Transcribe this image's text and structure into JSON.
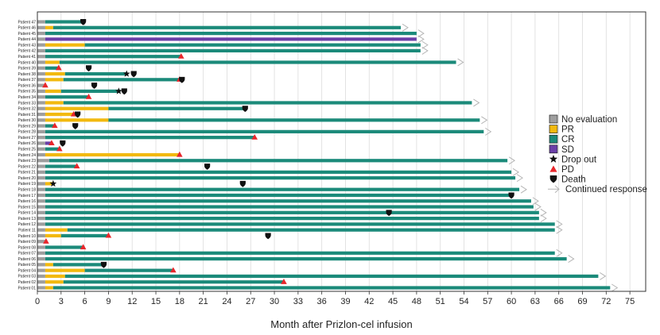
{
  "chart_data": {
    "type": "swimmer",
    "xlabel": "Month after Prizlon-cel infusion",
    "xlim": [
      0,
      77
    ],
    "x_ticks": [
      0,
      3,
      6,
      9,
      12,
      15,
      18,
      21,
      24,
      27,
      30,
      33,
      36,
      39,
      42,
      45,
      48,
      51,
      54,
      57,
      60,
      63,
      66,
      69,
      72,
      75
    ],
    "grid": true,
    "legend_position": "right",
    "legend": [
      {
        "key": "NE",
        "label": "No evaluation",
        "color": "#9e9e9e",
        "symbol": "square"
      },
      {
        "key": "PR",
        "label": "PR",
        "color": "#f2b90f",
        "symbol": "square"
      },
      {
        "key": "CR",
        "label": "CR",
        "color": "#1b8a7a",
        "symbol": "square"
      },
      {
        "key": "SD",
        "label": "SD",
        "color": "#6a3fa8",
        "symbol": "square"
      },
      {
        "key": "drop",
        "label": "Drop out",
        "symbol": "star"
      },
      {
        "key": "pd",
        "label": "PD",
        "symbol": "triangle"
      },
      {
        "key": "death",
        "label": "Death",
        "symbol": "shield"
      },
      {
        "key": "cont",
        "label": "Continued response",
        "symbol": "arrow"
      }
    ],
    "patients": [
      {
        "label": "Patient 01",
        "segments": [
          [
            "NE",
            0,
            1
          ],
          [
            "PR",
            1,
            2
          ],
          [
            "CR",
            2,
            72.5
          ]
        ],
        "markers": [],
        "continued": true
      },
      {
        "label": "Patient 02",
        "segments": [
          [
            "NE",
            0,
            1
          ],
          [
            "PR",
            1,
            3.3
          ],
          [
            "CR",
            3.3,
            31.2
          ]
        ],
        "markers": [
          {
            "type": "pd",
            "month": 31.2
          }
        ],
        "continued": false
      },
      {
        "label": "Patient 03",
        "segments": [
          [
            "NE",
            0,
            1
          ],
          [
            "PR",
            1,
            3.5
          ],
          [
            "CR",
            3.5,
            71
          ]
        ],
        "markers": [],
        "continued": true
      },
      {
        "label": "Patient 04",
        "segments": [
          [
            "NE",
            0,
            1
          ],
          [
            "PR",
            1,
            6
          ],
          [
            "CR",
            6,
            17.2
          ]
        ],
        "markers": [
          {
            "type": "pd",
            "month": 17.2
          }
        ],
        "continued": false
      },
      {
        "label": "Patient 05",
        "segments": [
          [
            "NE",
            0,
            1
          ],
          [
            "PR",
            1,
            2
          ],
          [
            "CR",
            2,
            8.4
          ]
        ],
        "markers": [
          {
            "type": "death",
            "month": 8.4
          }
        ],
        "continued": false
      },
      {
        "label": "Patient 06",
        "segments": [
          [
            "NE",
            0,
            1
          ],
          [
            "CR",
            1,
            67
          ]
        ],
        "markers": [],
        "continued": true
      },
      {
        "label": "Patient 07",
        "segments": [
          [
            "NE",
            0,
            1
          ],
          [
            "CR",
            1,
            65.5
          ]
        ],
        "markers": [],
        "continued": true
      },
      {
        "label": "Patient 08",
        "segments": [
          [
            "NE",
            0,
            1
          ],
          [
            "CR",
            1,
            5.8
          ]
        ],
        "markers": [
          {
            "type": "pd",
            "month": 5.8
          }
        ],
        "continued": false
      },
      {
        "label": "Patient 09",
        "segments": [
          [
            "NE",
            0,
            1
          ]
        ],
        "markers": [
          {
            "type": "pd",
            "month": 1.1
          }
        ],
        "continued": false
      },
      {
        "label": "Patient 10",
        "segments": [
          [
            "NE",
            0,
            1
          ],
          [
            "PR",
            1,
            3
          ],
          [
            "CR",
            3,
            9
          ]
        ],
        "markers": [
          {
            "type": "pd",
            "month": 9
          },
          {
            "type": "death",
            "month": 29.2
          }
        ],
        "continued": false
      },
      {
        "label": "Patient 11",
        "segments": [
          [
            "NE",
            0,
            1
          ],
          [
            "PR",
            1,
            3.8
          ],
          [
            "CR",
            3.8,
            65.5
          ]
        ],
        "markers": [],
        "continued": true
      },
      {
        "label": "Patient 12",
        "segments": [
          [
            "NE",
            0,
            1
          ],
          [
            "CR",
            1,
            65.5
          ]
        ],
        "markers": [],
        "continued": true
      },
      {
        "label": "Patient 13",
        "segments": [
          [
            "NE",
            0,
            1
          ],
          [
            "CR",
            1,
            63.5
          ]
        ],
        "markers": [],
        "continued": true
      },
      {
        "label": "Patient 14",
        "segments": [
          [
            "NE",
            0,
            1
          ],
          [
            "CR",
            1,
            63.5
          ]
        ],
        "markers": [
          {
            "type": "death",
            "month": 44.5
          }
        ],
        "continued": true
      },
      {
        "label": "Patient 15",
        "segments": [
          [
            "NE",
            0,
            1
          ],
          [
            "CR",
            1,
            62.8
          ]
        ],
        "markers": [],
        "continued": true
      },
      {
        "label": "Patient 16",
        "segments": [
          [
            "NE",
            0,
            1
          ],
          [
            "CR",
            1,
            62.5
          ]
        ],
        "markers": [],
        "continued": true
      },
      {
        "label": "Patient 17",
        "segments": [
          [
            "NE",
            0,
            1
          ],
          [
            "CR",
            1,
            60
          ]
        ],
        "markers": [
          {
            "type": "death",
            "month": 60
          }
        ],
        "continued": false
      },
      {
        "label": "Patient 18",
        "segments": [
          [
            "NE",
            0,
            1
          ],
          [
            "CR",
            1,
            61
          ]
        ],
        "markers": [],
        "continued": true
      },
      {
        "label": "Patient 19",
        "segments": [
          [
            "NE",
            0,
            1
          ],
          [
            "PR",
            1,
            2
          ]
        ],
        "markers": [
          {
            "type": "drop",
            "month": 2
          },
          {
            "type": "death",
            "month": 26
          }
        ],
        "continued": false
      },
      {
        "label": "Patient 20",
        "segments": [
          [
            "NE",
            0,
            1
          ],
          [
            "CR",
            1,
            60.5
          ]
        ],
        "markers": [],
        "continued": true
      },
      {
        "label": "Patient 21",
        "segments": [
          [
            "NE",
            0,
            1
          ],
          [
            "CR",
            1,
            60
          ]
        ],
        "markers": [],
        "continued": true
      },
      {
        "label": "Patient 22",
        "segments": [
          [
            "NE",
            0,
            1
          ],
          [
            "CR",
            1,
            5
          ]
        ],
        "markers": [
          {
            "type": "pd",
            "month": 5
          },
          {
            "type": "death",
            "month": 21.5
          }
        ],
        "continued": false
      },
      {
        "label": "Patient 23",
        "segments": [
          [
            "NE",
            0,
            1.5
          ],
          [
            "CR",
            1.5,
            59.5
          ]
        ],
        "markers": [],
        "continued": true
      },
      {
        "label": "Patient 24",
        "segments": [
          [
            "NE",
            0,
            1
          ],
          [
            "PR",
            1,
            18
          ]
        ],
        "markers": [
          {
            "type": "pd",
            "month": 18
          }
        ],
        "continued": false
      },
      {
        "label": "Patient 25",
        "segments": [
          [
            "NE",
            0,
            1
          ],
          [
            "CR",
            1,
            2.8
          ]
        ],
        "markers": [
          {
            "type": "pd",
            "month": 2.8
          }
        ],
        "continued": false
      },
      {
        "label": "Patient 26",
        "segments": [
          [
            "NE",
            0,
            1
          ],
          [
            "SD",
            1,
            1.8
          ]
        ],
        "markers": [
          {
            "type": "pd",
            "month": 1.8
          },
          {
            "type": "death",
            "month": 3.2
          }
        ],
        "continued": false
      },
      {
        "label": "Patient 27",
        "segments": [
          [
            "NE",
            0,
            1
          ],
          [
            "CR",
            1,
            27.5
          ]
        ],
        "markers": [
          {
            "type": "pd",
            "month": 27.5
          }
        ],
        "continued": false
      },
      {
        "label": "Patient 28",
        "segments": [
          [
            "NE",
            0,
            1
          ],
          [
            "CR",
            1,
            56.5
          ]
        ],
        "markers": [],
        "continued": true
      },
      {
        "label": "Patient 29",
        "segments": [
          [
            "NE",
            0,
            1
          ],
          [
            "CR",
            1,
            2.2
          ]
        ],
        "markers": [
          {
            "type": "pd",
            "month": 2.2
          },
          {
            "type": "death",
            "month": 4.8
          }
        ],
        "continued": false
      },
      {
        "label": "Patient 30",
        "segments": [
          [
            "NE",
            0,
            1
          ],
          [
            "PR",
            1,
            9
          ],
          [
            "CR",
            9,
            56
          ]
        ],
        "markers": [],
        "continued": true
      },
      {
        "label": "Patient 31",
        "segments": [
          [
            "NE",
            0,
            1
          ],
          [
            "PR",
            1,
            4.6
          ]
        ],
        "markers": [
          {
            "type": "pd",
            "month": 4.6
          },
          {
            "type": "death",
            "month": 5.1
          }
        ],
        "continued": false
      },
      {
        "label": "Patient 32",
        "segments": [
          [
            "NE",
            0,
            1
          ],
          [
            "PR",
            1,
            9
          ],
          [
            "CR",
            9,
            26.3
          ]
        ],
        "markers": [
          {
            "type": "death",
            "month": 26.3
          }
        ],
        "continued": false
      },
      {
        "label": "Patient 33",
        "segments": [
          [
            "NE",
            0,
            1
          ],
          [
            "PR",
            1,
            3.3
          ],
          [
            "CR",
            3.3,
            55
          ]
        ],
        "markers": [],
        "continued": true
      },
      {
        "label": "Patient 34",
        "segments": [
          [
            "NE",
            0,
            1
          ],
          [
            "CR",
            1,
            6.5
          ]
        ],
        "markers": [
          {
            "type": "pd",
            "month": 6.5
          }
        ],
        "continued": false
      },
      {
        "label": "Patient 35",
        "segments": [
          [
            "NE",
            0,
            1
          ],
          [
            "PR",
            1,
            3
          ],
          [
            "CR",
            3,
            10.5
          ]
        ],
        "markers": [
          {
            "type": "drop",
            "month": 10.3
          },
          {
            "type": "death",
            "month": 11
          }
        ],
        "continued": false
      },
      {
        "label": "Patient 36",
        "segments": [
          [
            "NE",
            0,
            1
          ]
        ],
        "markers": [
          {
            "type": "pd",
            "month": 1
          },
          {
            "type": "death",
            "month": 7.2
          }
        ],
        "continued": false
      },
      {
        "label": "Patient 37",
        "segments": [
          [
            "NE",
            0,
            1
          ],
          [
            "PR",
            1,
            3.3
          ],
          [
            "CR",
            3.3,
            18
          ]
        ],
        "markers": [
          {
            "type": "pd",
            "month": 18
          },
          {
            "type": "death",
            "month": 18.3
          }
        ],
        "continued": false
      },
      {
        "label": "Patient 38",
        "segments": [
          [
            "NE",
            0,
            1
          ],
          [
            "PR",
            1,
            3.5
          ],
          [
            "CR",
            3.5,
            11.3
          ]
        ],
        "markers": [
          {
            "type": "drop",
            "month": 11.3
          },
          {
            "type": "death",
            "month": 12.2
          }
        ],
        "continued": false
      },
      {
        "label": "Patient 39",
        "segments": [
          [
            "NE",
            0,
            1
          ],
          [
            "CR",
            1,
            2.7
          ]
        ],
        "markers": [
          {
            "type": "pd",
            "month": 2.7
          },
          {
            "type": "death",
            "month": 6.5
          }
        ],
        "continued": false
      },
      {
        "label": "Patient 40",
        "segments": [
          [
            "NE",
            0,
            1
          ],
          [
            "PR",
            1,
            2.8
          ],
          [
            "CR",
            2.8,
            53
          ]
        ],
        "markers": [],
        "continued": true
      },
      {
        "label": "Patient 41",
        "segments": [
          [
            "NE",
            0,
            1
          ],
          [
            "CR",
            1,
            18.2
          ]
        ],
        "markers": [
          {
            "type": "pd",
            "month": 18.2
          }
        ],
        "continued": false
      },
      {
        "label": "Patient 42",
        "segments": [
          [
            "NE",
            0,
            1
          ],
          [
            "CR",
            1,
            48.5
          ]
        ],
        "markers": [],
        "continued": true
      },
      {
        "label": "Patient 43",
        "segments": [
          [
            "NE",
            0,
            1
          ],
          [
            "PR",
            1,
            6
          ],
          [
            "CR",
            6,
            48.5
          ]
        ],
        "markers": [],
        "continued": true
      },
      {
        "label": "Patient 44",
        "segments": [
          [
            "NE",
            0,
            1
          ],
          [
            "SD",
            1,
            48
          ]
        ],
        "markers": [],
        "continued": true
      },
      {
        "label": "Patient 45",
        "segments": [
          [
            "NE",
            0,
            1
          ],
          [
            "CR",
            1,
            48
          ]
        ],
        "markers": [],
        "continued": true
      },
      {
        "label": "Patient 46",
        "segments": [
          [
            "NE",
            0,
            1
          ],
          [
            "PR",
            1,
            2
          ],
          [
            "CR",
            2,
            46
          ]
        ],
        "markers": [],
        "continued": true
      },
      {
        "label": "Patient 47",
        "segments": [
          [
            "NE",
            0,
            1
          ],
          [
            "CR",
            1,
            5.8
          ]
        ],
        "markers": [
          {
            "type": "death",
            "month": 5.8
          }
        ],
        "continued": false
      }
    ]
  }
}
